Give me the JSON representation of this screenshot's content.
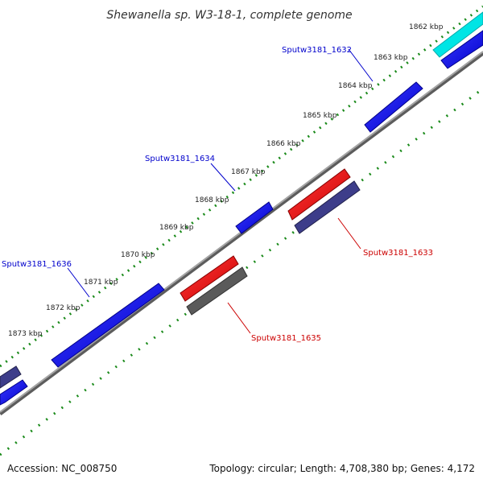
{
  "title": "Shewanella sp. W3-18-1, complete genome",
  "footer": {
    "accession": "Accession: NC_008750",
    "topology": "Topology: circular; Length: 4,708,380 bp; Genes: 4,172"
  },
  "colors": {
    "forward_gene": "#0000ff",
    "reverse_gene": "#ff0000",
    "forward_label": "#0000cc",
    "reverse_label": "#cc0000",
    "rna_or_other": "#00e5e5",
    "cds_dark": "#3d3d8a",
    "pseudo_gray": "#5a5a5a",
    "backbone": "#888888",
    "tick_track": "#1a8a1a"
  },
  "kbp_labels": [
    "1862 kbp",
    "1863 kbp",
    "1864 kbp",
    "1865 kbp",
    "1866 kbp",
    "1867 kbp",
    "1868 kbp",
    "1869 kbp",
    "1870 kbp",
    "1871 kbp",
    "1872 kbp",
    "1873 kbp"
  ],
  "gene_labels": {
    "g1632": "Sputw3181_1632",
    "g1633": "Sputw3181_1633",
    "g1634": "Sputw3181_1634",
    "g1635": "Sputw3181_1635",
    "g1636": "Sputw3181_1636"
  }
}
